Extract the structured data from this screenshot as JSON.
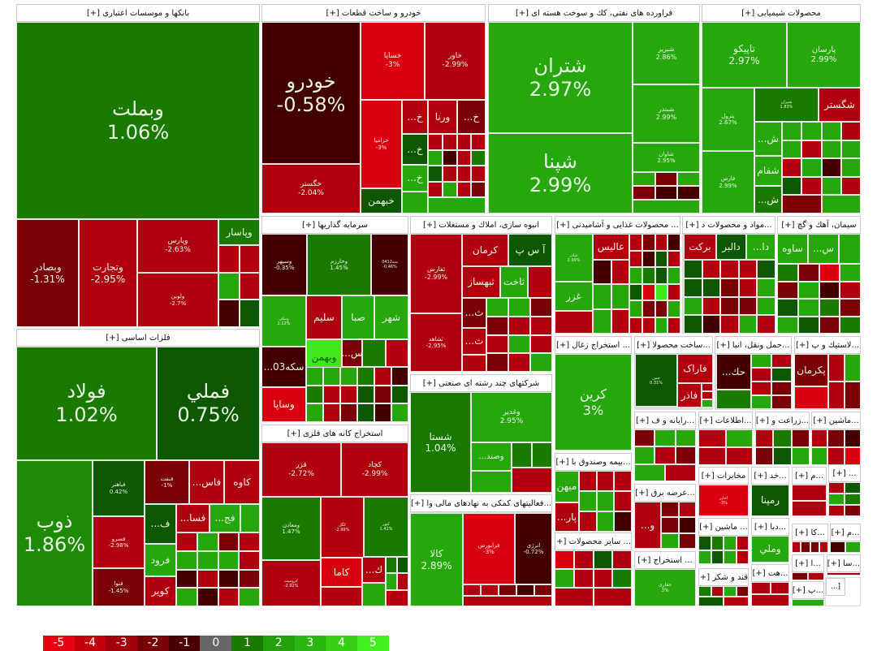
{
  "sectors": {
    "banks": {
      "title": "بانکها و موسسات اعتباری [+]",
      "tiles": [
        {
          "n": "وبملت",
          "c": "1.06%"
        },
        {
          "n": "وبصادر",
          "c": "-1.31%"
        },
        {
          "n": "وتجارت",
          "c": "-2.95%"
        },
        {
          "n": "وپارس",
          "c": "-2.63%"
        },
        {
          "n": "ولوین",
          "c": "-2.7%"
        },
        {
          "n": "وپاسار"
        }
      ]
    },
    "metals": {
      "title": "فلزات اساسی [+]",
      "tiles": [
        {
          "n": "فولاد",
          "c": "1.02%"
        },
        {
          "n": "فملي",
          "c": "0.75%"
        },
        {
          "n": "ذوب",
          "c": "1.86%"
        },
        {
          "n": "فباهنر",
          "c": "0.42%"
        },
        {
          "n": "فسرو",
          "c": "-2.98%"
        },
        {
          "n": "فنوا",
          "c": "-1.45%"
        },
        {
          "n": "فنفت",
          "c": "-1%"
        },
        {
          "n": "...فاس"
        },
        {
          "n": "کاوه"
        },
        {
          "n": "...ف"
        },
        {
          "n": "...فسا"
        },
        {
          "n": "...فج"
        },
        {
          "n": "فرود"
        },
        {
          "n": "کویر"
        }
      ]
    },
    "auto": {
      "title": "خودرو و ساخت قطعات [+]",
      "tiles": [
        {
          "n": "خودرو",
          "c": "-0.58%"
        },
        {
          "n": "خگستر",
          "c": "-2.04%"
        },
        {
          "n": "خساپا",
          "c": "-3%"
        },
        {
          "n": "خاور",
          "c": "-2.99%"
        },
        {
          "n": "خزامیا",
          "c": "-3%"
        },
        {
          "n": "...خ"
        },
        {
          "n": "ورنا"
        },
        {
          "n": "...خ"
        },
        {
          "n": "...خ"
        },
        {
          "n": "...خ"
        },
        {
          "n": "خبهمن"
        }
      ]
    },
    "oil": {
      "title": "فراورده های نفتی، کك و سوخت هسته ای [+]",
      "tiles": [
        {
          "n": "شتران",
          "c": "2.97%"
        },
        {
          "n": "شپنا",
          "c": "2.99%"
        },
        {
          "n": "شبریز",
          "c": "2.86%"
        },
        {
          "n": "شبندر",
          "c": "2.99%"
        },
        {
          "n": "شاوان",
          "c": "2.95%"
        }
      ]
    },
    "chem": {
      "title": "محصولات شیمیایی [+]",
      "tiles": [
        {
          "n": "تاپیکو",
          "c": "2.97%"
        },
        {
          "n": "پارسان",
          "c": "2.99%"
        },
        {
          "n": "پترول",
          "c": "2.67%"
        },
        {
          "n": "فارس",
          "c": "2.99%"
        },
        {
          "n": "شیران",
          "c": "1.83%"
        },
        {
          "n": "شگستر"
        },
        {
          "n": "...ش"
        },
        {
          "n": "شفام"
        },
        {
          "n": "...ش"
        }
      ]
    },
    "invest": {
      "title": "سرمایه گذاریها [+]",
      "tiles": [
        {
          "n": "وسپهر",
          "c": "-0.35%"
        },
        {
          "n": "وخارزم",
          "c": "1.45%"
        },
        {
          "n": "سه0412",
          "c": "-0.46%"
        },
        {
          "n": "ونیکی",
          "c": "2.12%"
        },
        {
          "n": "سلیم"
        },
        {
          "n": "صبا"
        },
        {
          "n": "شهر"
        },
        {
          "n": "...سکه03"
        },
        {
          "n": "وبهمن"
        },
        {
          "n": "...س"
        },
        {
          "n": "وساپا"
        }
      ]
    },
    "housing": {
      "title": "انبوه سازی، املاك و مستغلات [+]",
      "tiles": [
        {
          "n": "ثفارس",
          "c": "-2.99%"
        },
        {
          "n": "ثشاهد",
          "c": "-2.95%"
        },
        {
          "n": "کرمان"
        },
        {
          "n": "آ س پ"
        },
        {
          "n": "ثبهساز"
        },
        {
          "n": "ثاخت"
        },
        {
          "n": "...ث"
        },
        {
          "n": "...ث"
        }
      ]
    },
    "divers": {
      "title": "شرکتهای چند رشته ای صنعتی [+]",
      "tiles": [
        {
          "n": "شستا",
          "c": "1.04%"
        },
        {
          "n": "وغدیر",
          "c": "2.95%"
        },
        {
          "n": "...وصند"
        }
      ]
    },
    "finaux": {
      "title": "...فعالیتهای کمکی به نهادهای مالی وا [+]",
      "tiles": [
        {
          "n": "کالا",
          "c": "2.89%"
        },
        {
          "n": "فرابورس",
          "c": "-3%"
        },
        {
          "n": "انرژی",
          "c": "-0.72%"
        }
      ]
    },
    "mining": {
      "title": "استخراج کانه های فلزی [+]",
      "tiles": [
        {
          "n": "فزر",
          "c": "-2.72%"
        },
        {
          "n": "کچاد",
          "c": "-2.99%"
        },
        {
          "n": "ومعادن",
          "c": "1.47%"
        },
        {
          "n": "کگل",
          "c": "-2.99%"
        },
        {
          "n": "کپور",
          "c": "1.41%"
        },
        {
          "n": "کرومیت",
          "c": "-2.92%"
        },
        {
          "n": "کاما"
        },
        {
          "n": "...ك"
        }
      ]
    },
    "food": {
      "title": "... محصولات غذایی و آشامیدنی [+]",
      "tiles": [
        {
          "n": "غپاذر",
          "c": "2.99%"
        },
        {
          "n": "غزر"
        },
        {
          "n": "عالیس"
        }
      ]
    },
    "materials": {
      "title": "...مواد و محصولات د [+]",
      "tiles": [
        {
          "n": "برکت"
        },
        {
          "n": "دالبر"
        },
        {
          "n": "...دا"
        }
      ]
    },
    "cement": {
      "title": "سیمان، آهك و گچ [+]",
      "tiles": [
        {
          "n": "ساوه"
        },
        {
          "n": "...س"
        }
      ]
    },
    "coal": {
      "title": "... استخراج زغال [+]",
      "tiles": [
        {
          "n": "کرین",
          "c": "3%"
        }
      ]
    },
    "fabmetal": {
      "title": "...ساخت محصولا [+]",
      "tiles": [
        {
          "n": "چمن",
          "c": "0.31%"
        },
        {
          "n": "فاراک"
        },
        {
          "n": "فاذر"
        }
      ]
    },
    "transport": {
      "title": "...حمل ونقل، انبا [+]",
      "tiles": [
        {
          "n": "...حك"
        }
      ]
    },
    "rubber": {
      "title": "...لاستیك و پ [+]",
      "tiles": [
        {
          "n": "پکرمان"
        }
      ]
    },
    "computer": {
      "title": "...رایانه و ف [+]"
    },
    "info": {
      "title": "...اطلاعات [+]"
    },
    "agri": {
      "title": "...زراعت و [+]"
    },
    "machine1": {
      "title": "...ماشین [+]"
    },
    "insurance": {
      "title": "...بیمه وصندوق با [+]",
      "tiles": [
        {
          "n": "میهن"
        },
        {
          "n": "...پار"
        }
      ]
    },
    "power": {
      "title": "...عرضه برق [+]",
      "tiles": [
        {
          "n": "...و"
        }
      ]
    },
    "other": {
      "title": "... سایر محصولات [+]"
    },
    "extract": {
      "title": "... استخراج [+]",
      "tiles": [
        {
          "n": "حفاری",
          "c": "3%"
        }
      ]
    },
    "telecom": {
      "title": "مخابرات [+]",
      "tiles": [
        {
          "n": "اخابر",
          "c": "-3%"
        }
      ]
    },
    "khad": {
      "title": "...خد [+]",
      "tiles": [
        {
          "n": "رمپنا"
        }
      ]
    },
    "m1": {
      "title": "...م [+]"
    },
    "dots": {
      "title": "... [+]"
    },
    "machine2": {
      "title": "... ماشین [+]"
    },
    "daba": {
      "title": "...دبا [+]",
      "tiles": [
        {
          "n": "وملي"
        }
      ]
    },
    "ka": {
      "title": "...کا [+]"
    },
    "m2": {
      "title": "...م [+]"
    },
    "sugar": {
      "title": "قند و شکر [+]"
    },
    "hat": {
      "title": "...هت [+]"
    },
    "a": {
      "title": "...ا [+]"
    },
    "sa": {
      "title": "...سا [+]"
    },
    "p": {
      "title": "...پ [+]"
    },
    "misc": {
      "title": "[..."
    }
  },
  "legend": {
    "labels": [
      "-5",
      "-4",
      "-3",
      "-2",
      "-1",
      "0",
      "1",
      "2",
      "3",
      "4",
      "5"
    ],
    "colors": [
      "#e8000e",
      "#c4000c",
      "#a2000a",
      "#7a0008",
      "#4a0000",
      "#666666",
      "#1a7a00",
      "#23a00a",
      "#2bb510",
      "#38d015",
      "#44f022"
    ]
  }
}
